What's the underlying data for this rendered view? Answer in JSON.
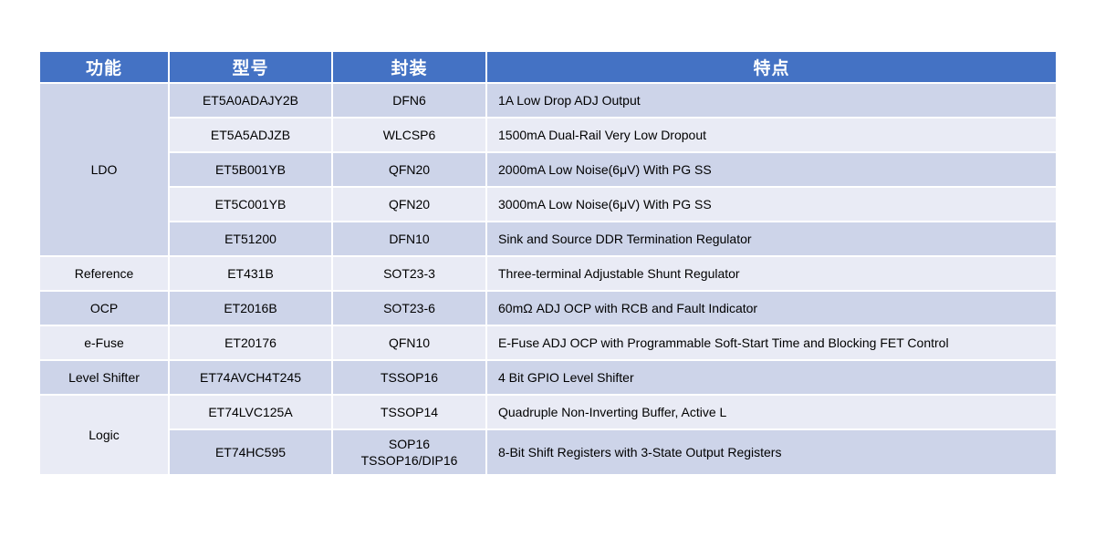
{
  "table": {
    "accent_color": "#4472C4",
    "band_dark_color": "#CDD4E9",
    "band_light_color": "#E9EBF5",
    "headers": {
      "function": "功能",
      "model": "型号",
      "package": "封装",
      "feature": "特点"
    },
    "rows": [
      {
        "function": "LDO",
        "function_rowspan": 5,
        "model": "ET5A0ADAJY2B",
        "package": "DFN6",
        "feature": "1A Low Drop ADJ Output"
      },
      {
        "model": "ET5A5ADJZB",
        "package": "WLCSP6",
        "feature": "1500mA Dual-Rail Very Low Dropout"
      },
      {
        "model": "ET5B001YB",
        "package": "QFN20",
        "feature": "2000mA Low Noise(6μV) With PG SS"
      },
      {
        "model": "ET5C001YB",
        "package": "QFN20",
        "feature": "3000mA Low Noise(6μV) With PG SS"
      },
      {
        "model": "ET51200",
        "package": "DFN10",
        "feature": "Sink and Source DDR Termination Regulator"
      },
      {
        "function": "Reference",
        "function_rowspan": 1,
        "model": "ET431B",
        "package": "SOT23-3",
        "feature": "Three-terminal Adjustable Shunt Regulator"
      },
      {
        "function": "OCP",
        "function_rowspan": 1,
        "model": "ET2016B",
        "package": "SOT23-6",
        "feature": "60mΩ ADJ OCP with RCB and Fault Indicator"
      },
      {
        "function": "e-Fuse",
        "function_rowspan": 1,
        "model": "ET20176",
        "package": "QFN10",
        "feature": "E-Fuse ADJ OCP with Programmable Soft-Start Time and Blocking FET Control"
      },
      {
        "function": "Level Shifter",
        "function_rowspan": 1,
        "model": "ET74AVCH4T245",
        "package": "TSSOP16",
        "feature": "4 Bit GPIO Level Shifter"
      },
      {
        "function": "Logic",
        "function_rowspan": 2,
        "model": "ET74LVC125A",
        "package": "TSSOP14",
        "feature": "Quadruple Non-Inverting Buffer, Active L"
      },
      {
        "model": "ET74HC595",
        "package": "SOP16\nTSSOP16/DIP16",
        "feature": "8-Bit Shift Registers with 3-State Output Registers"
      }
    ]
  }
}
